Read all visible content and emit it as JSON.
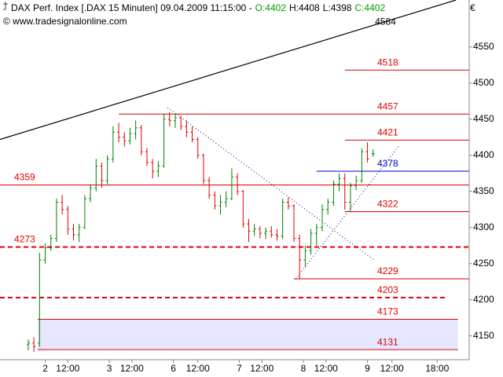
{
  "chart_data": {
    "type": "ohlc",
    "title": "DAX Perf. Index [.DAX  15 Minuten] 09.04.2009 11:15:00 -",
    "ohlc_texts": [
      {
        "text": "O:4402",
        "color": "#00a000"
      },
      {
        "text": "H:4408",
        "color": "#000000"
      },
      {
        "text": "L:4398",
        "color": "#000000"
      },
      {
        "text": "C:4402",
        "color": "#00a000"
      }
    ],
    "source": "© www.tradesignalonline.com",
    "currency": "€",
    "up_color": "#008000",
    "down_color": "#e00000",
    "xlim": [
      0,
      249
    ],
    "ylim": [
      4117,
      4615
    ],
    "yticks": [
      4150,
      4200,
      4250,
      4300,
      4350,
      4400,
      4450,
      4500,
      4550
    ],
    "xticks": [
      {
        "value": 24,
        "label": "2"
      },
      {
        "value": 36,
        "label": "12:00"
      },
      {
        "value": 58,
        "label": "3"
      },
      {
        "value": 70,
        "label": "12:00"
      },
      {
        "value": 92,
        "label": "6"
      },
      {
        "value": 105,
        "label": "12:00"
      },
      {
        "value": 127,
        "label": "7"
      },
      {
        "value": 139,
        "label": "12:00"
      },
      {
        "value": 161,
        "label": "8"
      },
      {
        "value": 173,
        "label": "12:00"
      },
      {
        "value": 195,
        "label": "9"
      },
      {
        "value": 208,
        "label": "12:00"
      },
      {
        "value": 232,
        "label": "18:00"
      }
    ],
    "x": [
      15,
      18,
      21,
      24,
      27,
      30,
      33,
      36,
      39,
      42,
      45,
      48,
      51,
      54,
      57,
      60,
      63,
      66,
      69,
      72,
      75,
      78,
      81,
      84,
      87,
      90,
      93,
      96,
      99,
      102,
      105,
      108,
      111,
      114,
      117,
      120,
      123,
      126,
      129,
      132,
      135,
      138,
      141,
      144,
      147,
      150,
      153,
      156,
      159,
      162,
      165,
      168,
      171,
      174,
      177,
      180,
      183,
      186,
      189,
      192,
      195,
      198
    ],
    "open": [
      4138,
      4140,
      4140,
      4255,
      4272,
      4285,
      4335,
      4325,
      4298,
      4290,
      4300,
      4340,
      4355,
      4385,
      4365,
      4395,
      4432,
      4425,
      4420,
      4430,
      4438,
      4405,
      4390,
      4378,
      4385,
      4450,
      4448,
      4452,
      4440,
      4432,
      4422,
      4400,
      4365,
      4345,
      4330,
      4335,
      4340,
      4370,
      4350,
      4305,
      4295,
      4298,
      4292,
      4295,
      4290,
      4288,
      4335,
      4330,
      4285,
      4255,
      4268,
      4292,
      4300,
      4325,
      4335,
      4360,
      4368,
      4335,
      4358,
      4365,
      4405,
      4402
    ],
    "high": [
      4145,
      4148,
      4265,
      4278,
      4290,
      4340,
      4345,
      4330,
      4305,
      4305,
      4345,
      4360,
      4395,
      4390,
      4400,
      4440,
      4445,
      4432,
      4438,
      4448,
      4442,
      4410,
      4395,
      4392,
      4458,
      4460,
      4458,
      4455,
      4448,
      4440,
      4425,
      4402,
      4370,
      4350,
      4345,
      4350,
      4382,
      4375,
      4352,
      4312,
      4305,
      4302,
      4300,
      4302,
      4298,
      4340,
      4342,
      4332,
      4290,
      4275,
      4298,
      4305,
      4332,
      4340,
      4365,
      4375,
      4375,
      4362,
      4372,
      4410,
      4418,
      4408
    ],
    "low": [
      4130,
      4128,
      4135,
      4250,
      4268,
      4280,
      4318,
      4290,
      4282,
      4280,
      4298,
      4335,
      4350,
      4355,
      4360,
      4390,
      4418,
      4412,
      4415,
      4422,
      4400,
      4385,
      4368,
      4370,
      4383,
      4440,
      4438,
      4435,
      4425,
      4418,
      4395,
      4360,
      4340,
      4325,
      4318,
      4328,
      4338,
      4345,
      4300,
      4280,
      4288,
      4285,
      4284,
      4286,
      4282,
      4284,
      4325,
      4280,
      4229,
      4245,
      4262,
      4275,
      4295,
      4318,
      4330,
      4350,
      4325,
      4322,
      4352,
      4362,
      4390,
      4398
    ],
    "close": [
      4140,
      4135,
      4255,
      4272,
      4285,
      4335,
      4325,
      4298,
      4290,
      4300,
      4340,
      4355,
      4385,
      4365,
      4395,
      4432,
      4425,
      4420,
      4430,
      4438,
      4405,
      4390,
      4378,
      4385,
      4450,
      4448,
      4452,
      4440,
      4432,
      4422,
      4400,
      4365,
      4345,
      4330,
      4335,
      4340,
      4370,
      4350,
      4305,
      4295,
      4298,
      4292,
      4295,
      4290,
      4288,
      4335,
      4330,
      4285,
      4255,
      4268,
      4292,
      4300,
      4325,
      4335,
      4360,
      4368,
      4335,
      4358,
      4365,
      4405,
      4395,
      4402
    ],
    "levels": [
      {
        "value": 4518,
        "color": "#e00000",
        "style": "solid",
        "from": 183,
        "label_side": "right"
      },
      {
        "value": 4457,
        "color": "#e00000",
        "style": "solid",
        "from": 63,
        "label_side": "right"
      },
      {
        "value": 4421,
        "color": "#e00000",
        "style": "solid",
        "from": 183,
        "label_side": "right"
      },
      {
        "value": 4378,
        "color": "#0000cc",
        "style": "solid",
        "from": 168,
        "label_side": "right"
      },
      {
        "value": 4359,
        "color": "#e00000",
        "style": "solid",
        "from": 0,
        "label_side": "left"
      },
      {
        "value": 4322,
        "color": "#e00000",
        "style": "solid",
        "from": 183,
        "label_side": "right"
      },
      {
        "value": 4273,
        "color": "#e00000",
        "style": "dashed",
        "from": 0,
        "label_side": "left"
      },
      {
        "value": 4229,
        "color": "#e00000",
        "style": "solid",
        "from": 156,
        "label_side": "right"
      },
      {
        "value": 4203,
        "color": "#e00000",
        "style": "dashed",
        "from": 0,
        "to": 237,
        "label_side": "right"
      },
      {
        "value": 4173,
        "color": "#e00000",
        "style": "solid",
        "from": 20,
        "to": 243,
        "label_side": "right"
      },
      {
        "value": 4131,
        "color": "#e00000",
        "style": "solid",
        "from": 20,
        "to": 243,
        "label_side": "right"
      }
    ],
    "zone": {
      "from_level": 4131,
      "to_level": 4173,
      "color": "#e6e6ff"
    },
    "trendlines": [
      {
        "x": [
          0,
          242
        ],
        "y": [
          4422,
          4615
        ],
        "color": "#000000",
        "style": "solid",
        "label": 4584,
        "label_x": 199
      },
      {
        "x": [
          89,
          199
        ],
        "y": [
          4466,
          4254
        ],
        "color": "#0000aa",
        "style": "dotted"
      },
      {
        "x": [
          157,
          212
        ],
        "y": [
          4229,
          4414
        ],
        "color": "#0000aa",
        "style": "dotted"
      }
    ]
  }
}
